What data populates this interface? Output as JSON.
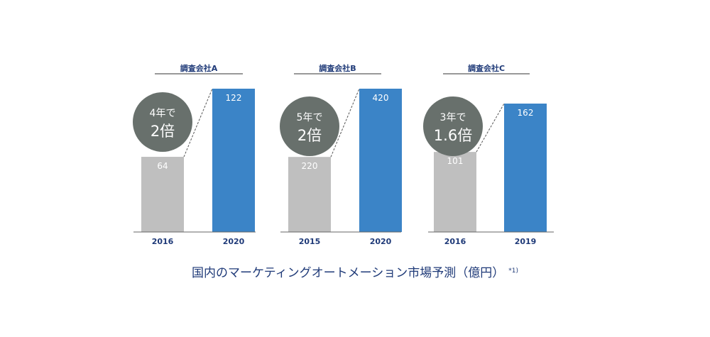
{
  "colors": {
    "old_bar": "#bfbfbf",
    "new_bar": "#3b84c7",
    "bubble": "#68706c",
    "text_blue": "#1f3a78",
    "axis": "#666666"
  },
  "chart_data": [
    {
      "type": "bar",
      "title": "調査会社A",
      "categories": [
        "2016",
        "2020"
      ],
      "values": [
        64,
        122
      ],
      "value_labels": [
        "64",
        "122"
      ],
      "callout": {
        "line1": "4年で",
        "line2": "2倍"
      }
    },
    {
      "type": "bar",
      "title": "調査会社B",
      "categories": [
        "2015",
        "2020"
      ],
      "values": [
        220,
        420
      ],
      "value_labels": [
        "220",
        "420"
      ],
      "callout": {
        "line1": "5年で",
        "line2": "2倍"
      }
    },
    {
      "type": "bar",
      "title": "調査会社C",
      "categories": [
        "2016",
        "2019"
      ],
      "values": [
        101,
        162
      ],
      "value_labels": [
        "101",
        "162"
      ],
      "callout": {
        "line1": "3年で",
        "line2": "1.6倍"
      }
    }
  ],
  "caption": {
    "text": "国内のマーケティングオートメーション市場予測（億円）",
    "note": "*1)"
  }
}
